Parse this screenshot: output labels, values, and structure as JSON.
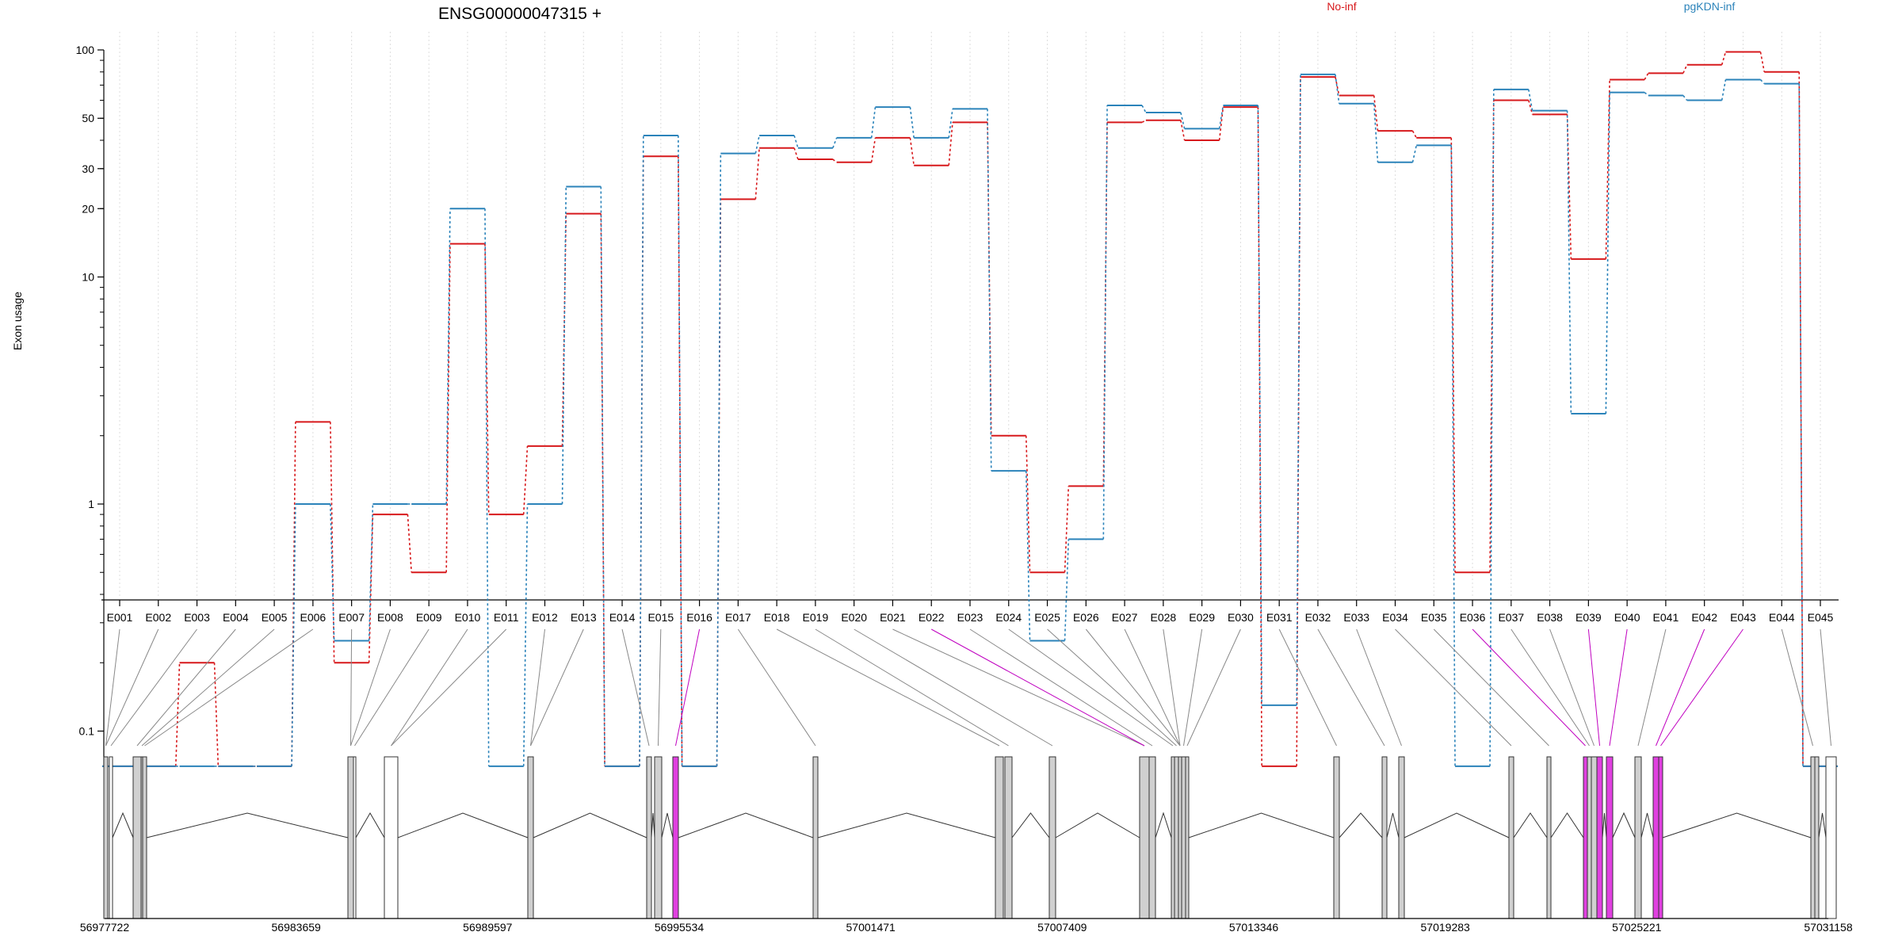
{
  "chart_data": {
    "type": "line",
    "title": "ENSG00000047315 +",
    "ylabel": "Exon usage",
    "xlabel": "",
    "y_scale": "log",
    "ylim": [
      0.07,
      100
    ],
    "y_ticks": [
      0.1,
      1,
      10,
      20,
      30,
      50,
      100
    ],
    "y_tick_labels": [
      "0.1",
      "1",
      "10",
      "20",
      "30",
      "50",
      "100"
    ],
    "grid": "vertical dotted",
    "legend_position": "top",
    "categories": [
      "E001",
      "E002",
      "E003",
      "E004",
      "E005",
      "E006",
      "E007",
      "E008",
      "E009",
      "E010",
      "E011",
      "E012",
      "E013",
      "E014",
      "E015",
      "E016",
      "E017",
      "E018",
      "E019",
      "E020",
      "E021",
      "E022",
      "E023",
      "E024",
      "E025",
      "E026",
      "E027",
      "E028",
      "E029",
      "E030",
      "E031",
      "E032",
      "E033",
      "E034",
      "E035",
      "E036",
      "E037",
      "E038",
      "E039",
      "E040",
      "E041",
      "E042",
      "E043",
      "E044",
      "E045"
    ],
    "series": [
      {
        "name": "No-inf",
        "color": "#d7191c",
        "values": [
          0.07,
          0.07,
          0.2,
          0.07,
          0.07,
          2.3,
          0.2,
          0.9,
          0.5,
          14,
          0.9,
          1.8,
          19,
          0.07,
          34,
          0.07,
          22,
          37,
          33,
          32,
          41,
          31,
          48,
          2.0,
          0.5,
          1.2,
          48,
          49,
          40,
          56,
          0.07,
          76,
          63,
          44,
          41,
          0.5,
          60,
          52,
          12,
          74,
          79,
          86,
          98,
          80,
          0.07
        ]
      },
      {
        "name": "pgKDN-inf",
        "color": "#2b83ba",
        "values": [
          0.07,
          0.07,
          0.07,
          0.07,
          0.07,
          1.0,
          0.25,
          1.0,
          1.0,
          20,
          0.07,
          1.0,
          25,
          0.07,
          42,
          0.07,
          35,
          42,
          37,
          41,
          56,
          41,
          55,
          1.4,
          0.25,
          0.7,
          57,
          53,
          45,
          57,
          0.13,
          78,
          58,
          32,
          38,
          0.07,
          67,
          54,
          2.5,
          65,
          63,
          60,
          74,
          71,
          0.07
        ]
      }
    ],
    "gene_model": {
      "axis_labels": [
        "56977722",
        "56983659",
        "56989597",
        "56995534",
        "57001471",
        "57007409",
        "57013346",
        "57019283",
        "57025221",
        "57031158"
      ],
      "highlighted_exons": [
        "E016",
        "E022",
        "E036",
        "E039",
        "E040",
        "E042",
        "E043"
      ],
      "highlight_color": "#e040e0",
      "exon_fill": "#d0d0d0"
    }
  }
}
